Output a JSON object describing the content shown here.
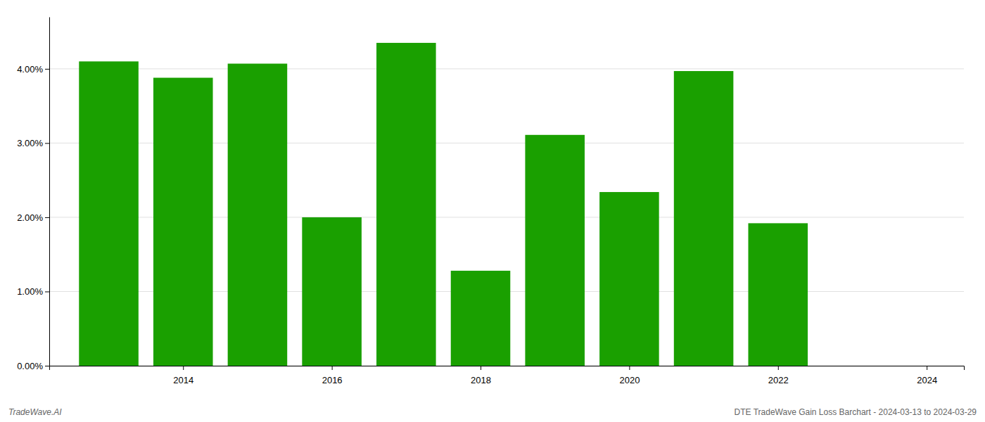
{
  "chart_data": {
    "type": "bar",
    "x": [
      2013,
      2014,
      2015,
      2016,
      2017,
      2018,
      2019,
      2020,
      2021,
      2022
    ],
    "values": [
      0.041,
      0.0388,
      0.0407,
      0.02,
      0.0435,
      0.0128,
      0.0311,
      0.0234,
      0.0397,
      0.0192
    ],
    "color": "#1aA000",
    "xlim": [
      2012.2,
      2024.5
    ],
    "xticks": [
      2014,
      2016,
      2018,
      2020,
      2022,
      2024
    ],
    "ylim": [
      0,
      0.047
    ],
    "yticks": [
      {
        "value": 0.0,
        "label": "0.00%"
      },
      {
        "value": 0.01,
        "label": "1.00%"
      },
      {
        "value": 0.02,
        "label": "2.00%"
      },
      {
        "value": 0.03,
        "label": "3.00%"
      },
      {
        "value": 0.04,
        "label": "4.00%"
      }
    ],
    "grid": true,
    "annotations": [
      "TradeWave.AI",
      "DTE TradeWave Gain Loss Barchart - 2024-03-13 to 2024-03-29"
    ]
  }
}
